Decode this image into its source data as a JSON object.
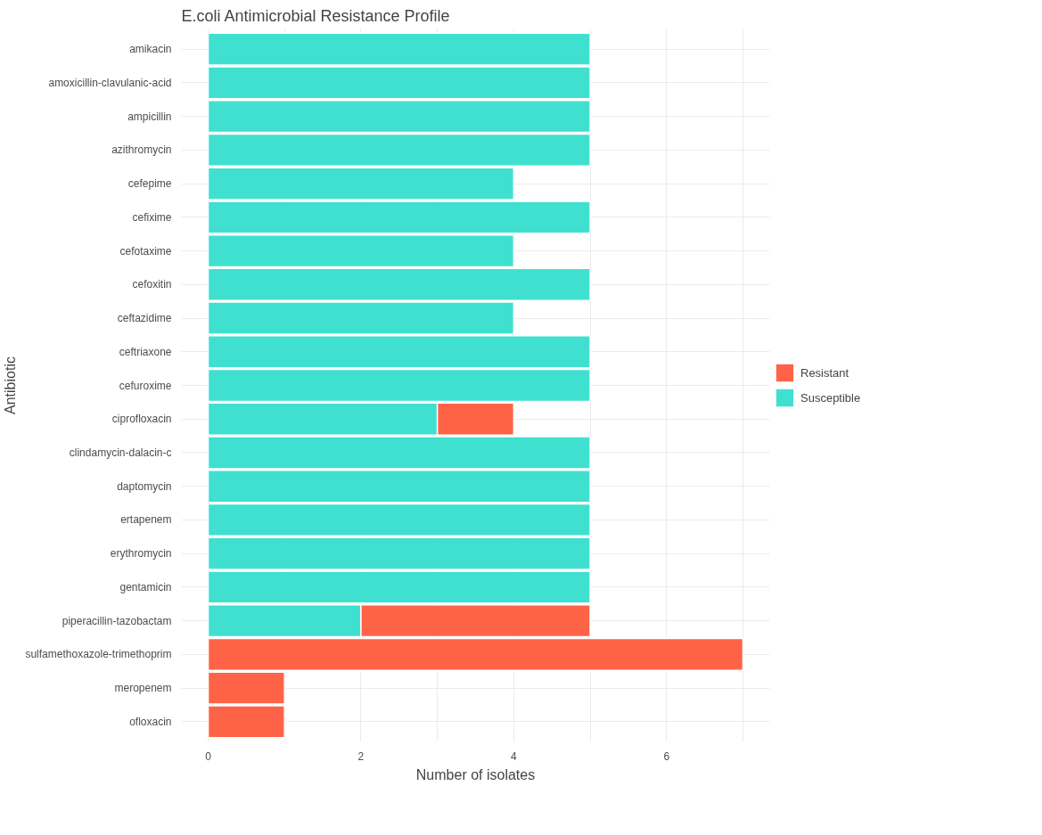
{
  "chart_data": {
    "type": "bar",
    "orientation": "horizontal",
    "stacked": true,
    "title": "E.coli Antimicrobial Resistance Profile",
    "xlabel": "Number of isolates",
    "ylabel": "Antibiotic",
    "categories": [
      "amikacin",
      "amoxicillin-clavulanic-acid",
      "ampicillin",
      "azithromycin",
      "cefepime",
      "cefixime",
      "cefotaxime",
      "cefoxitin",
      "ceftazidime",
      "ceftriaxone",
      "cefuroxime",
      "ciprofloxacin",
      "clindamycin-dalacin-c",
      "daptomycin",
      "ertapenem",
      "erythromycin",
      "gentamicin",
      "piperacillin-tazobactam",
      "sulfamethoxazole-trimethoprim",
      "meropenem",
      "ofloxacin"
    ],
    "series": [
      {
        "name": "Susceptible",
        "color": "#40e0d0",
        "values": [
          5,
          5,
          5,
          5,
          4,
          5,
          4,
          5,
          4,
          5,
          5,
          3,
          5,
          5,
          5,
          5,
          5,
          2,
          null,
          null,
          null
        ]
      },
      {
        "name": "Resistant",
        "color": "#ff6347",
        "values": [
          null,
          null,
          null,
          null,
          null,
          null,
          null,
          null,
          null,
          null,
          null,
          1,
          null,
          null,
          null,
          null,
          null,
          3,
          7,
          1,
          1
        ]
      }
    ],
    "xlim": [
      -0.35,
      7.35
    ],
    "xticks": [
      0,
      {
        "value": 1,
        "label": null
      },
      2,
      {
        "value": 3,
        "label": null
      },
      4,
      {
        "value": 5,
        "label": null
      },
      6,
      {
        "value": 7,
        "label": null
      }
    ],
    "grid": true,
    "legend": "right"
  }
}
